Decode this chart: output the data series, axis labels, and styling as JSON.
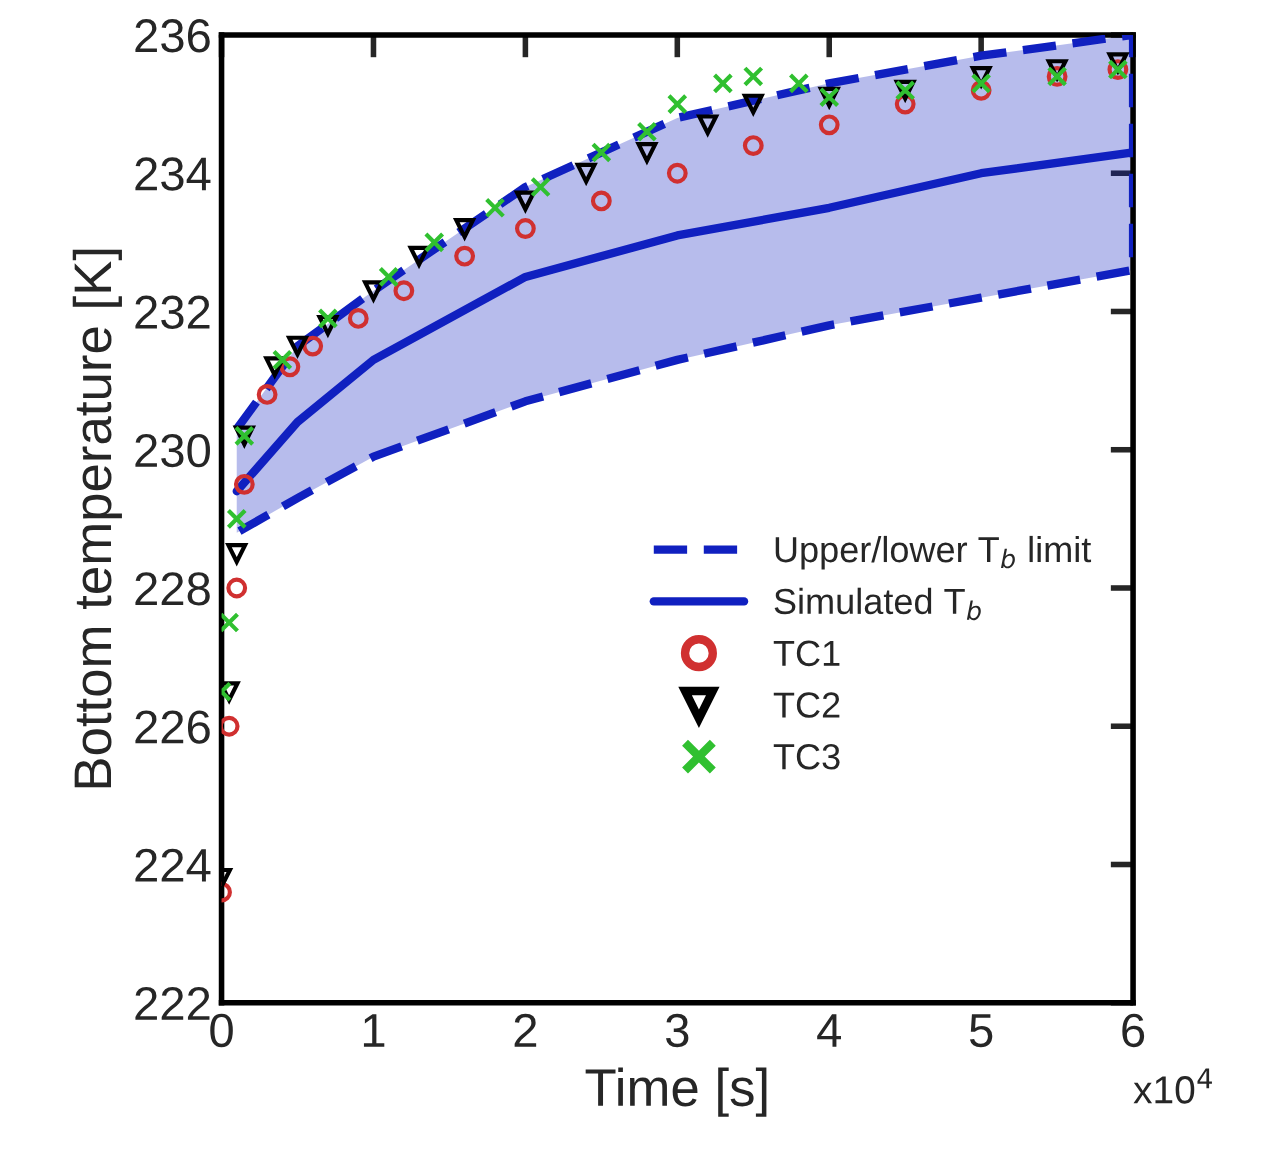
{
  "chart_data": {
    "type": "line",
    "xlabel": "Time [s]",
    "ylabel": "Bottom temperature [K]",
    "annotations": [
      "x10$^{4}$"
    ],
    "xlim": [
      0,
      6
    ],
    "xticks": [
      0,
      1,
      2,
      3,
      4,
      5,
      6
    ],
    "ylim": [
      222,
      236
    ],
    "yticks": [
      222,
      224,
      226,
      228,
      230,
      232,
      234,
      236
    ],
    "grid": false,
    "legend": "bottom right",
    "series": [
      {
        "name": "Upper/lower T$_{b}$ limit",
        "color": "#1020c0",
        "line_style": "dashed",
        "marker": "none",
        "x": [
          0.1,
          0.5,
          1,
          2,
          3,
          4,
          5,
          6,
          6,
          5,
          4,
          3,
          2,
          1,
          0.5,
          0.1
        ],
        "values": [
          230.3,
          231.5,
          232.3,
          233.8,
          234.8,
          235.3,
          235.7,
          236.0,
          232.6,
          232.2,
          231.8,
          231.3,
          230.7,
          229.9,
          229.3,
          228.8
        ]
      },
      {
        "name": "Simulated T$_{b}$",
        "color": "#1020c0",
        "line_style": "solid",
        "marker": "none",
        "x": [
          0.1,
          0.5,
          1,
          2,
          3,
          4,
          5,
          6
        ],
        "values": [
          229.4,
          230.4,
          231.3,
          232.5,
          233.1,
          233.5,
          234.0,
          234.3
        ],
        "lower": [
          228.8,
          229.3,
          229.9,
          230.7,
          231.3,
          231.8,
          232.2,
          232.6
        ],
        "upper": [
          230.3,
          231.5,
          232.3,
          233.8,
          234.8,
          235.3,
          235.7,
          236.0
        ]
      },
      {
        "name": "TC1",
        "color": "#d03030",
        "type": "scatter",
        "marker": "circle",
        "x": [
          0,
          0.05,
          0.1,
          0.15,
          0.3,
          0.45,
          0.6,
          0.9,
          1.2,
          1.6,
          2,
          2.5,
          3,
          3.5,
          4,
          4.5,
          5,
          5.5,
          5.9
        ],
        "values": [
          223.6,
          226.0,
          228.0,
          229.5,
          230.8,
          231.2,
          231.5,
          231.9,
          232.3,
          232.8,
          233.2,
          233.6,
          234.0,
          234.4,
          234.7,
          235.0,
          235.2,
          235.4,
          235.5
        ]
      },
      {
        "name": "TC2",
        "color": "#000000",
        "type": "scatter",
        "marker": "triangle",
        "x": [
          0,
          0.05,
          0.1,
          0.15,
          0.35,
          0.5,
          0.7,
          1,
          1.3,
          1.6,
          2,
          2.4,
          2.8,
          3.2,
          3.5,
          4,
          4.5,
          5,
          5.5,
          5.9
        ],
        "values": [
          223.8,
          226.5,
          228.5,
          230.2,
          231.2,
          231.5,
          231.8,
          232.3,
          232.8,
          233.2,
          233.6,
          234.0,
          234.3,
          234.7,
          235.0,
          235.1,
          235.2,
          235.4,
          235.5,
          235.6
        ]
      },
      {
        "name": "TC3",
        "color": "#30c030",
        "type": "scatter",
        "marker": "cross",
        "x": [
          0,
          0.05,
          0.1,
          0.15,
          0.4,
          0.7,
          1.1,
          1.4,
          1.8,
          2.1,
          2.5,
          2.8,
          3,
          3.3,
          3.5,
          3.8,
          4,
          4.5,
          5,
          5.5,
          5.9
        ],
        "values": [
          226.5,
          227.5,
          229.0,
          230.2,
          231.3,
          231.9,
          232.5,
          233.0,
          233.5,
          233.8,
          234.3,
          234.6,
          235.0,
          235.3,
          235.4,
          235.3,
          235.1,
          235.2,
          235.3,
          235.4,
          235.5
        ]
      }
    ]
  }
}
